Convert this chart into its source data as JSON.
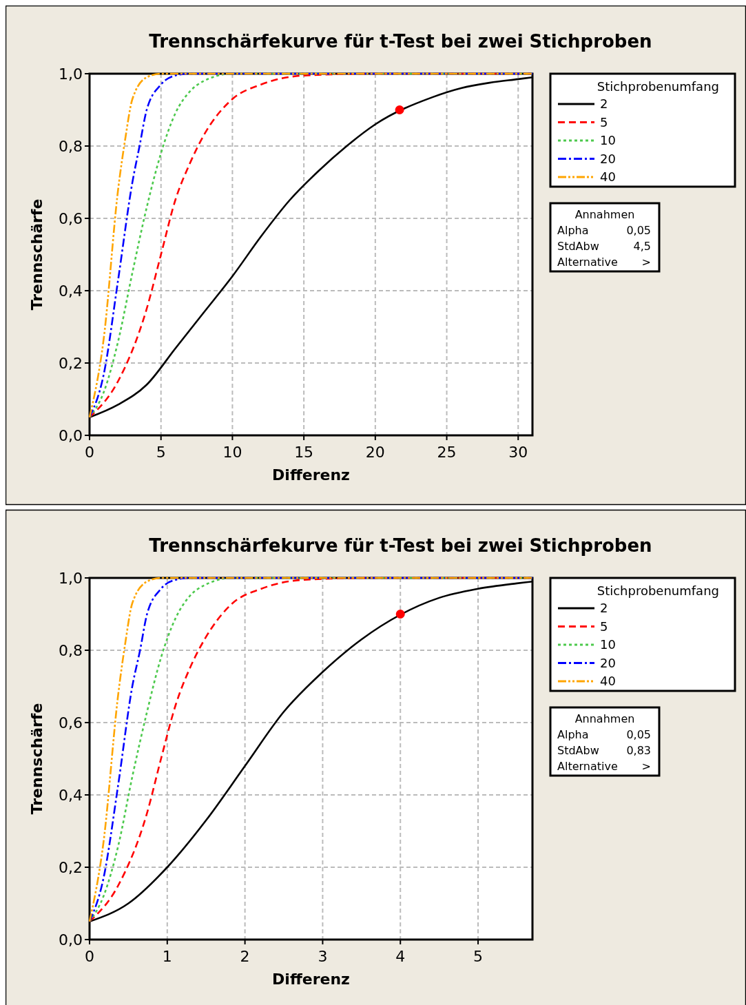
{
  "chart_data": [
    {
      "type": "line",
      "title": "Trennschärfekurve für t-Test bei zwei Stichproben",
      "xlabel": "Differenz",
      "ylabel": "Trennschärfe",
      "legend_title": "Stichprobenumfang",
      "legend": "right",
      "grid": true,
      "xlim": [
        0,
        31
      ],
      "xticks": [
        0,
        5,
        10,
        15,
        20,
        25,
        30
      ],
      "ylim": [
        0,
        1
      ],
      "yticks": [
        {
          "value": 0,
          "label": "0,0"
        },
        {
          "value": 0.2,
          "label": "0,2"
        },
        {
          "value": 0.4,
          "label": "0,4"
        },
        {
          "value": 0.6,
          "label": "0,6"
        },
        {
          "value": 0.8,
          "label": "0,8"
        },
        {
          "value": 1,
          "label": "1,0"
        }
      ],
      "annotations": [
        "Annahmen",
        "Alpha",
        "0,05",
        "StdAbw",
        "4,5",
        "Alternative",
        ">"
      ],
      "series": [
        {
          "name": "2",
          "color": "#000000",
          "line_style": "solid",
          "x": [
            0,
            2,
            4,
            6,
            8,
            10,
            12,
            14,
            16,
            18,
            20,
            24,
            26,
            28,
            30,
            31
          ],
          "values": [
            0.05,
            0.085,
            0.14,
            0.24,
            0.34,
            0.44,
            0.55,
            0.65,
            0.73,
            0.8,
            0.86,
            0.935,
            0.96,
            0.975,
            0.985,
            0.99
          ]
        },
        {
          "name": "5",
          "color": "#ff0000",
          "line_style": "dashed",
          "x": [
            0,
            2,
            4,
            5,
            6,
            7,
            8,
            10,
            12,
            15,
            20,
            31
          ],
          "values": [
            0.05,
            0.15,
            0.35,
            0.5,
            0.65,
            0.75,
            0.83,
            0.93,
            0.97,
            0.995,
            1,
            1
          ]
        },
        {
          "name": "10",
          "color": "#4dc94d",
          "line_style": "dotted",
          "x": [
            0,
            1,
            2,
            3,
            4,
            5,
            6,
            7,
            8,
            10,
            31
          ],
          "values": [
            0.05,
            0.12,
            0.26,
            0.45,
            0.63,
            0.78,
            0.89,
            0.95,
            0.98,
            1,
            1
          ]
        },
        {
          "name": "20",
          "color": "#0000ff",
          "line_style": "dashdot",
          "x": [
            0,
            1,
            2,
            3,
            3.5,
            4,
            5,
            6,
            7,
            31
          ],
          "values": [
            0.05,
            0.17,
            0.43,
            0.7,
            0.8,
            0.9,
            0.97,
            0.995,
            1,
            1
          ]
        },
        {
          "name": "40",
          "color": "#ffa500",
          "line_style": "dashdotdot",
          "x": [
            0,
            1,
            2,
            2.5,
            3,
            4,
            5,
            31
          ],
          "values": [
            0.05,
            0.27,
            0.68,
            0.82,
            0.93,
            0.99,
            1,
            1
          ]
        },
        {
          "type": "scatter",
          "marker": "circle",
          "color": "#ff0000",
          "x": [
            21.7
          ],
          "values": [
            0.9
          ]
        }
      ]
    },
    {
      "type": "line",
      "title": "Trennschärfekurve für t-Test bei zwei Stichproben",
      "xlabel": "Differenz",
      "ylabel": "Trennschärfe",
      "legend_title": "Stichprobenumfang",
      "legend": "right",
      "grid": true,
      "xlim": [
        0,
        5.7
      ],
      "xticks": [
        0,
        1,
        2,
        3,
        4,
        5
      ],
      "ylim": [
        0,
        1
      ],
      "yticks": [
        {
          "value": 0,
          "label": "0,0"
        },
        {
          "value": 0.2,
          "label": "0,2"
        },
        {
          "value": 0.4,
          "label": "0,4"
        },
        {
          "value": 0.6,
          "label": "0,6"
        },
        {
          "value": 0.8,
          "label": "0,8"
        },
        {
          "value": 1,
          "label": "1,0"
        }
      ],
      "annotations": [
        "Annahmen",
        "Alpha",
        "0,05",
        "StdAbw",
        "0,83",
        "Alternative",
        ">"
      ],
      "series": [
        {
          "name": "2",
          "color": "#000000",
          "line_style": "solid",
          "x": [
            0,
            0.5,
            1,
            1.5,
            2,
            2.5,
            3,
            3.5,
            4.5,
            5,
            5.5,
            5.7
          ],
          "values": [
            0.05,
            0.1,
            0.2,
            0.33,
            0.48,
            0.63,
            0.74,
            0.83,
            0.945,
            0.97,
            0.985,
            0.99
          ]
        },
        {
          "name": "5",
          "color": "#ff0000",
          "line_style": "dashed",
          "x": [
            0,
            0.37,
            0.74,
            0.92,
            1.11,
            1.29,
            1.48,
            1.84,
            2.21,
            2.77,
            3.69,
            5.7
          ],
          "values": [
            0.05,
            0.15,
            0.35,
            0.5,
            0.65,
            0.75,
            0.83,
            0.93,
            0.97,
            0.995,
            1,
            1
          ]
        },
        {
          "name": "10",
          "color": "#4dc94d",
          "line_style": "dotted",
          "x": [
            0,
            0.18,
            0.37,
            0.55,
            0.74,
            0.92,
            1.11,
            1.29,
            1.48,
            1.84,
            5.7
          ],
          "values": [
            0.05,
            0.12,
            0.26,
            0.45,
            0.63,
            0.78,
            0.89,
            0.95,
            0.98,
            1,
            1
          ]
        },
        {
          "name": "20",
          "color": "#0000ff",
          "line_style": "dashdot",
          "x": [
            0,
            0.18,
            0.37,
            0.55,
            0.65,
            0.74,
            0.92,
            1.11,
            1.29,
            5.7
          ],
          "values": [
            0.05,
            0.17,
            0.43,
            0.7,
            0.8,
            0.9,
            0.97,
            0.995,
            1,
            1
          ]
        },
        {
          "name": "40",
          "color": "#ffa500",
          "line_style": "dashdotdot",
          "x": [
            0,
            0.18,
            0.37,
            0.46,
            0.55,
            0.74,
            0.92,
            5.7
          ],
          "values": [
            0.05,
            0.27,
            0.68,
            0.82,
            0.93,
            0.99,
            1,
            1
          ]
        },
        {
          "type": "scatter",
          "marker": "circle",
          "color": "#ff0000",
          "x": [
            4
          ],
          "values": [
            0.9
          ]
        }
      ]
    }
  ]
}
